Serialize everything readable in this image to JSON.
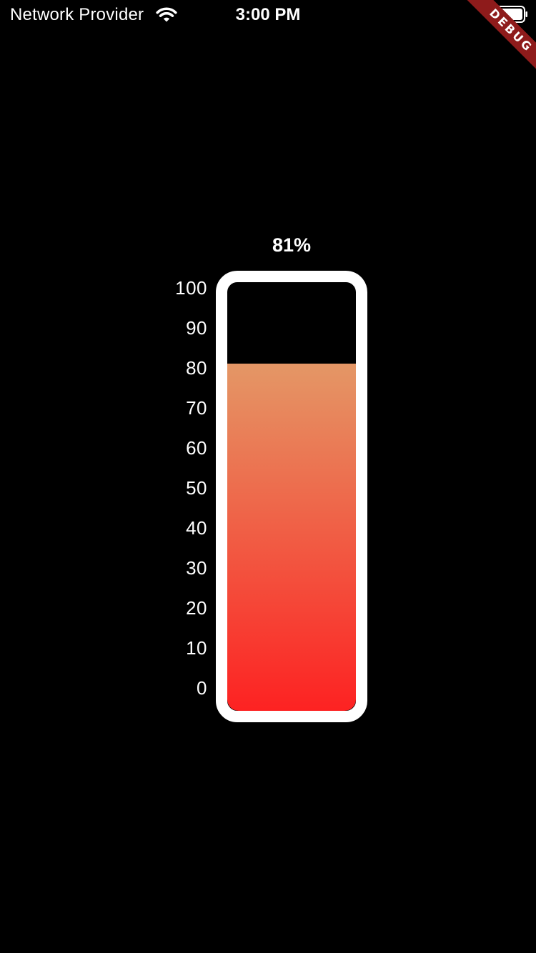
{
  "status_bar": {
    "carrier": "Network Provider",
    "time": "3:00 PM",
    "wifi_icon": "wifi-icon",
    "battery_icon": "battery-icon"
  },
  "debug_banner": {
    "label": "DEBUG",
    "color": "#8e1b1b"
  },
  "gauge": {
    "percent_label": "81%",
    "level": 81,
    "max": 100,
    "scale_labels": [
      "100",
      "90",
      "80",
      "70",
      "60",
      "50",
      "40",
      "30",
      "20",
      "10",
      "0"
    ],
    "frame_color": "#ffffff",
    "fill_color_top": "#e49766",
    "fill_color_bottom": "#fd2222",
    "empty_color": "#000000"
  }
}
